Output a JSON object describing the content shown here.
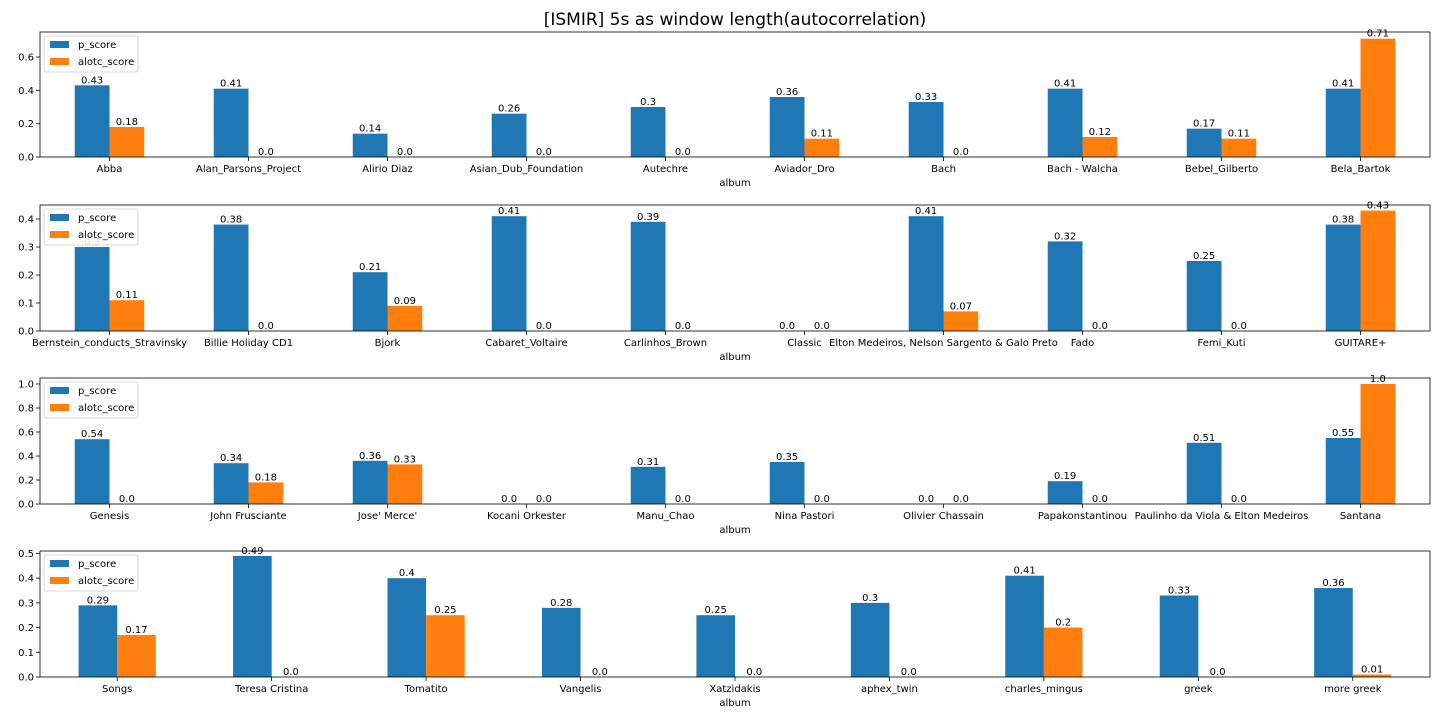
{
  "title": "[ISMIR] 5s as window length(autocorrelation)",
  "colors": {
    "p_score": "#1f77b4",
    "alotc_score": "#ff7f0e"
  },
  "chart_data": [
    {
      "type": "bar",
      "xlabel": "album",
      "ylim": [
        0,
        0.75
      ],
      "yticks": [
        0.0,
        0.2,
        0.4,
        0.6
      ],
      "ytick_labels": [
        "0.0",
        "0.2",
        "0.4",
        "0.6"
      ],
      "legend": "top-left",
      "categories": [
        "Abba",
        "Alan_Parsons_Project",
        "Alirio Diaz",
        "Asian_Dub_Foundation",
        "Autechre",
        "Aviador_Dro",
        "Bach",
        "Bach - Walcha",
        "Bebel_Gilberto",
        "Bela_Bartok"
      ],
      "series": [
        {
          "name": "p_score",
          "values": [
            0.43,
            0.41,
            0.14,
            0.26,
            0.3,
            0.36,
            0.33,
            0.41,
            0.17,
            0.41
          ],
          "labels": [
            "0.43",
            "0.41",
            "0.14",
            "0.26",
            "0.3",
            "0.36",
            "0.33",
            "0.41",
            "0.17",
            "0.41"
          ]
        },
        {
          "name": "alotc_score",
          "values": [
            0.18,
            0.0,
            0.0,
            0.0,
            0.0,
            0.11,
            0.0,
            0.12,
            0.11,
            0.71
          ],
          "labels": [
            "0.18",
            "0.0",
            "0.0",
            "0.0",
            "0.0",
            "0.11",
            "0.0",
            "0.12",
            "0.11",
            "0.71"
          ]
        }
      ]
    },
    {
      "type": "bar",
      "xlabel": "album",
      "ylim": [
        0,
        0.45
      ],
      "yticks": [
        0.0,
        0.1,
        0.2,
        0.3,
        0.4
      ],
      "ytick_labels": [
        "0.0",
        "0.1",
        "0.2",
        "0.3",
        "0.4"
      ],
      "legend": "top-left",
      "categories": [
        "Bernstein_conducts_Stravinsky",
        "Billie Holiday CD1",
        "Bjork",
        "Cabaret_Voltaire",
        "Carlinhos_Brown",
        "Classic",
        "Elton Medeiros, Nelson Sargento & Galo Preto",
        "Fado",
        "Femi_Kuti",
        "GUITARE+"
      ],
      "series": [
        {
          "name": "p_score",
          "values": [
            0.3,
            0.38,
            0.21,
            0.41,
            0.39,
            0.0,
            0.41,
            0.32,
            0.25,
            0.38
          ],
          "labels": [
            "0.3",
            "0.38",
            "0.21",
            "0.41",
            "0.39",
            "0.0",
            "0.41",
            "0.32",
            "0.25",
            "0.38"
          ]
        },
        {
          "name": "alotc_score",
          "values": [
            0.11,
            0.0,
            0.09,
            0.0,
            0.0,
            0.0,
            0.07,
            0.0,
            0.0,
            0.43
          ],
          "labels": [
            "0.11",
            "0.0",
            "0.09",
            "0.0",
            "0.0",
            "0.0",
            "0.07",
            "0.0",
            "0.0",
            "0.43"
          ]
        }
      ]
    },
    {
      "type": "bar",
      "xlabel": "album",
      "ylim": [
        0,
        1.05
      ],
      "yticks": [
        0.0,
        0.2,
        0.4,
        0.6,
        0.8,
        1.0
      ],
      "ytick_labels": [
        "0.0",
        "0.2",
        "0.4",
        "0.6",
        "0.8",
        "1.0"
      ],
      "legend": "top-left",
      "categories": [
        "Genesis",
        "John Frusciante",
        "Jose' Merce'",
        "Kocani Orkester",
        "Manu_Chao",
        "Nina Pastori",
        "Olivier Chassain",
        "Papakonstantinou",
        "Paulinho da Viola & Elton Medeiros",
        "Santana"
      ],
      "series": [
        {
          "name": "p_score",
          "values": [
            0.54,
            0.34,
            0.36,
            0.0,
            0.31,
            0.35,
            0.0,
            0.19,
            0.51,
            0.55
          ],
          "labels": [
            "0.54",
            "0.34",
            "0.36",
            "0.0",
            "0.31",
            "0.35",
            "0.0",
            "0.19",
            "0.51",
            "0.55"
          ]
        },
        {
          "name": "alotc_score",
          "values": [
            0.0,
            0.18,
            0.33,
            0.0,
            0.0,
            0.0,
            0.0,
            0.0,
            0.0,
            1.0
          ],
          "labels": [
            "0.0",
            "0.18",
            "0.33",
            "0.0",
            "0.0",
            "0.0",
            "0.0",
            "0.0",
            "0.0",
            "1.0"
          ]
        }
      ]
    },
    {
      "type": "bar",
      "xlabel": "album",
      "ylim": [
        0,
        0.51
      ],
      "yticks": [
        0.0,
        0.1,
        0.2,
        0.3,
        0.4,
        0.5
      ],
      "ytick_labels": [
        "0.0",
        "0.1",
        "0.2",
        "0.3",
        "0.4",
        "0.5"
      ],
      "legend": "top-left",
      "categories": [
        "Songs",
        "Teresa Cristina",
        "Tomatito",
        "Vangelis",
        "Xatzidakis",
        "aphex_twin",
        "charles_mingus",
        "greek",
        "more greek"
      ],
      "series": [
        {
          "name": "p_score",
          "values": [
            0.29,
            0.49,
            0.4,
            0.28,
            0.25,
            0.3,
            0.41,
            0.33,
            0.36
          ],
          "labels": [
            "0.29",
            "0.49",
            "0.4",
            "0.28",
            "0.25",
            "0.3",
            "0.41",
            "0.33",
            "0.36"
          ]
        },
        {
          "name": "alotc_score",
          "values": [
            0.17,
            0.0,
            0.25,
            0.0,
            0.0,
            0.0,
            0.2,
            0.0,
            0.01
          ],
          "labels": [
            "0.17",
            "0.0",
            "0.25",
            "0.0",
            "0.0",
            "0.0",
            "0.2",
            "0.0",
            "0.01"
          ]
        }
      ]
    }
  ]
}
